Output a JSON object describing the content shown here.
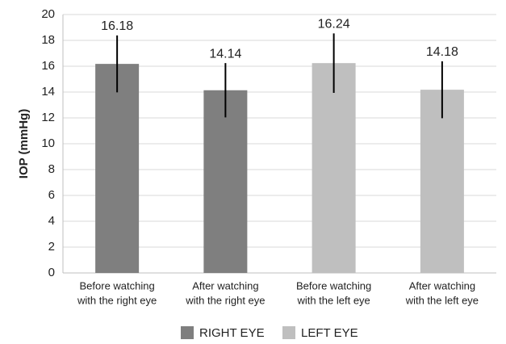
{
  "chart_data": {
    "type": "bar",
    "y_label": "IOP (mmHg)",
    "categories": [
      [
        "Before watching",
        "with the right eye"
      ],
      [
        "After watching",
        "with the right eye"
      ],
      [
        "Before watching",
        "with the left eye"
      ],
      [
        "After watching",
        "with the left eye"
      ]
    ],
    "series": [
      {
        "name": "RIGHT EYE",
        "color": "#7f7f7f",
        "values": [
          16.18,
          14.14,
          null,
          null
        ],
        "errors": [
          2.2,
          2.1,
          null,
          null
        ]
      },
      {
        "name": "LEFT EYE",
        "color": "#bfbfbf",
        "values": [
          null,
          null,
          16.24,
          14.18
        ],
        "errors": [
          null,
          null,
          2.3,
          2.2
        ]
      }
    ],
    "ylim": [
      0,
      20
    ],
    "yticks": [
      0,
      2,
      4,
      6,
      8,
      10,
      12,
      14,
      16,
      18,
      20
    ],
    "grid": true,
    "legend": "bottom"
  }
}
